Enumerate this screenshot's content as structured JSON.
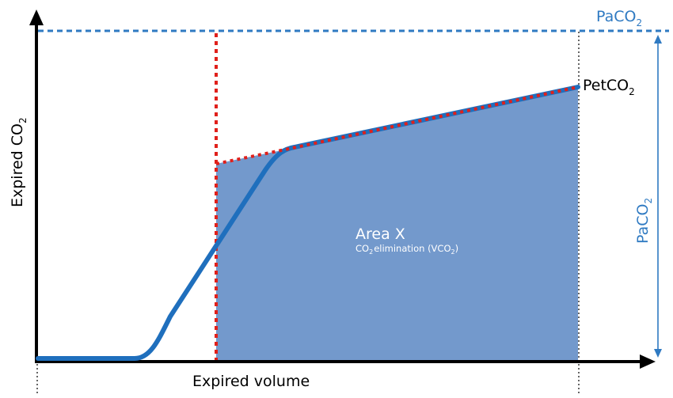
{
  "diagram": {
    "y_axis_label": "Expired CO",
    "y_axis_sub": "2",
    "x_axis_label": "Expired volume",
    "top_label": "PaCO",
    "top_label_sub": "2",
    "side_label": "PaCO",
    "side_label_sub": "2",
    "petco2_label": "PetCO",
    "petco2_sub": "2",
    "area_title": "Area X",
    "area_desc_a": "CO",
    "area_desc_sub_a": "2",
    "area_desc_b": "elimination (VCO",
    "area_desc_sub_b": "2",
    "area_desc_c": ")"
  },
  "colors": {
    "axis": "#000000",
    "curve": "#1f6fbd",
    "fill": "#7399cc",
    "red_dash": "#e0201b",
    "paco2_blue": "#2f7ac2",
    "area_text": "#ffffff"
  }
}
